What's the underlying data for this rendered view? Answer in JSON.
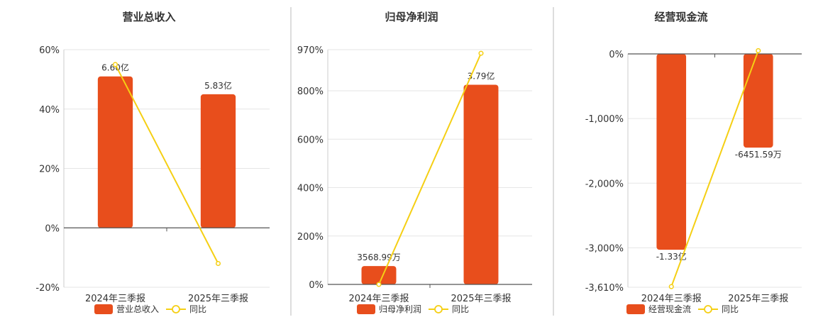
{
  "chart_data": [
    {
      "type": "bar",
      "title": "营业总收入",
      "categories": [
        "2024年三季报",
        "2025年三季报"
      ],
      "bar_labels": [
        "6.60亿",
        "5.83亿"
      ],
      "ylim": [
        -20,
        60
      ],
      "yticks": [
        -20,
        0,
        20,
        40,
        60
      ],
      "ytick_labels": [
        "-20%",
        "0%",
        "20%",
        "40%",
        "60%"
      ],
      "series": [
        {
          "name": "营业总收入",
          "kind": "bar",
          "values": [
            51,
            45
          ],
          "color": "#e84e1c"
        },
        {
          "name": "同比",
          "kind": "line",
          "values": [
            55,
            -12
          ],
          "color": "#f5cf14"
        }
      ],
      "legend_position": "bottom"
    },
    {
      "type": "bar",
      "title": "归母净利润",
      "categories": [
        "2024年三季报",
        "2025年三季报"
      ],
      "bar_labels": [
        "3568.99万",
        "3.79亿"
      ],
      "ylim": [
        0,
        970
      ],
      "yticks": [
        0,
        200,
        400,
        600,
        800,
        970
      ],
      "ytick_labels": [
        "0%",
        "200%",
        "400%",
        "600%",
        "800%",
        "970%"
      ],
      "series": [
        {
          "name": "归母净利润",
          "kind": "bar",
          "values": [
            76,
            825
          ],
          "color": "#e84e1c"
        },
        {
          "name": "同比",
          "kind": "line",
          "values": [
            0,
            955
          ],
          "color": "#f5cf14"
        }
      ],
      "legend_position": "bottom"
    },
    {
      "type": "bar",
      "title": "经营现金流",
      "categories": [
        "2024年三季报",
        "2025年三季报"
      ],
      "bar_labels": [
        "-1.33亿",
        "-6451.59万"
      ],
      "ylim": [
        -3610,
        0
      ],
      "yticks": [
        -3610,
        -3000,
        -2000,
        -1000,
        0
      ],
      "ytick_labels": [
        "-3,610%",
        "-3,000%",
        "-2,000%",
        "-1,000%",
        "0%"
      ],
      "series": [
        {
          "name": "经营现金流",
          "kind": "bar",
          "values": [
            -3030,
            -1450
          ],
          "color": "#e84e1c"
        },
        {
          "name": "同比",
          "kind": "line",
          "values": [
            -3600,
            50
          ],
          "color": "#f5cf14"
        }
      ],
      "legend_position": "bottom"
    }
  ]
}
